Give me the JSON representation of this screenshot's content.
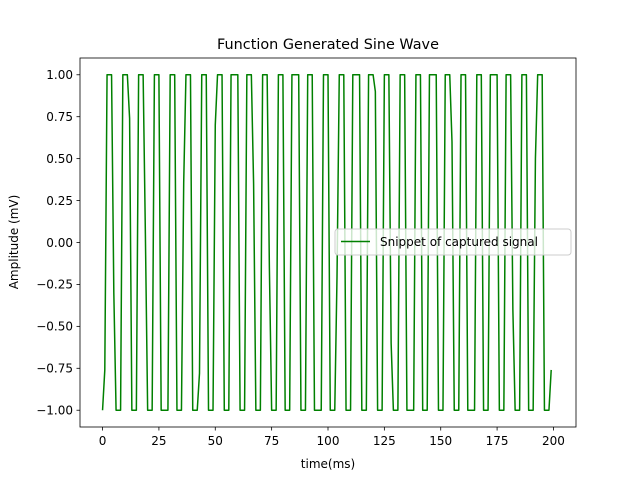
{
  "chart_data": {
    "type": "line",
    "title": "Function Generated Sine Wave",
    "xlabel": "time(ms)",
    "ylabel": "Amplitude (mV)",
    "xlim": [
      -10,
      210
    ],
    "ylim": [
      -1.1,
      1.1
    ],
    "xticks": [
      0,
      25,
      50,
      75,
      100,
      125,
      150,
      175,
      200
    ],
    "xtick_labels": [
      "0",
      "25",
      "50",
      "75",
      "100",
      "125",
      "150",
      "175",
      "200"
    ],
    "yticks": [
      1.0,
      0.75,
      0.5,
      0.25,
      0.0,
      -0.25,
      -0.5,
      -0.75,
      -1.0
    ],
    "ytick_labels": [
      "1.00",
      "0.75",
      "0.50",
      "0.25",
      "0.00",
      "−0.25",
      "−0.50",
      "−0.75",
      "−1.00"
    ],
    "grid": false,
    "legend_position": "center-right",
    "series": [
      {
        "name": "Snippet of captured signal",
        "color": "#008000",
        "x": [
          0,
          1,
          2,
          3,
          4,
          5,
          6,
          7,
          8,
          9,
          10,
          11,
          12,
          13,
          14,
          15,
          16,
          17,
          18,
          19,
          20,
          21,
          22,
          23,
          24,
          25,
          26,
          27,
          28,
          29,
          30,
          31,
          32,
          33,
          34,
          35,
          36,
          37,
          38,
          39,
          40,
          41,
          42,
          43,
          44,
          45,
          46,
          47,
          48,
          49,
          50,
          51,
          52,
          53,
          54,
          55,
          56,
          57,
          58,
          59,
          60,
          61,
          62,
          63,
          64,
          65,
          66,
          67,
          68,
          69,
          70,
          71,
          72,
          73,
          74,
          75,
          76,
          77,
          78,
          79,
          80,
          81,
          82,
          83,
          84,
          85,
          86,
          87,
          88,
          89,
          90,
          91,
          92,
          93,
          94,
          95,
          96,
          97,
          98,
          99,
          100,
          101,
          102,
          103,
          104,
          105,
          106,
          107,
          108,
          109,
          110,
          111,
          112,
          113,
          114,
          115,
          116,
          117,
          118,
          119,
          120,
          121,
          122,
          123,
          124,
          125,
          126,
          127,
          128,
          129,
          130,
          131,
          132,
          133,
          134,
          135,
          136,
          137,
          138,
          139,
          140,
          141,
          142,
          143,
          144,
          145,
          146,
          147,
          148,
          149,
          150,
          151,
          152,
          153,
          154,
          155,
          156,
          157,
          158,
          159,
          160,
          161,
          162,
          163,
          164,
          165,
          166,
          167,
          168,
          169,
          170,
          171,
          172,
          173,
          174,
          175,
          176,
          177,
          178,
          179,
          180,
          181,
          182,
          183,
          184,
          185,
          186,
          187,
          188,
          189,
          190,
          191,
          192,
          193,
          194,
          195,
          196,
          197,
          198,
          199
        ],
        "y": [
          -1.0,
          -0.76,
          1.0,
          1.0,
          1.0,
          -0.3,
          -1.0,
          -1.0,
          -1.0,
          1.0,
          1.0,
          1.0,
          0.74,
          -1.0,
          -1.0,
          -1.0,
          1.0,
          1.0,
          1.0,
          0.05,
          -1.0,
          -1.0,
          -1.0,
          1.0,
          1.0,
          1.0,
          -1.0,
          -1.0,
          -1.0,
          -1.0,
          1.0,
          1.0,
          1.0,
          -1.0,
          -1.0,
          -1.0,
          0.36,
          1.0,
          1.0,
          1.0,
          -1.0,
          -1.0,
          -1.0,
          -0.78,
          1.0,
          1.0,
          1.0,
          -1.0,
          -1.0,
          -1.0,
          0.7,
          1.0,
          1.0,
          1.0,
          -1.0,
          -1.0,
          -1.0,
          1.0,
          1.0,
          1.0,
          1.0,
          -1.0,
          -1.0,
          -1.0,
          1.0,
          1.0,
          1.0,
          0.35,
          -1.0,
          -1.0,
          -1.0,
          1.0,
          1.0,
          1.0,
          -0.15,
          -1.0,
          -1.0,
          -1.0,
          1.0,
          1.0,
          1.0,
          -1.0,
          -1.0,
          -1.0,
          1.0,
          1.0,
          1.0,
          1.0,
          -1.0,
          -1.0,
          -1.0,
          1.0,
          1.0,
          1.0,
          -1.0,
          -1.0,
          -1.0,
          -1.0,
          1.0,
          1.0,
          1.0,
          -1.0,
          -1.0,
          -1.0,
          -0.2,
          1.0,
          1.0,
          1.0,
          -1.0,
          -1.0,
          -1.0,
          1.0,
          1.0,
          1.0,
          1.0,
          -1.0,
          -1.0,
          -1.0,
          1.0,
          1.0,
          1.0,
          0.9,
          -1.0,
          -1.0,
          -1.0,
          1.0,
          1.0,
          1.0,
          -0.6,
          -1.0,
          -1.0,
          -1.0,
          1.0,
          1.0,
          1.0,
          -1.0,
          -1.0,
          -1.0,
          -1.0,
          1.0,
          1.0,
          1.0,
          -1.0,
          -1.0,
          -1.0,
          1.0,
          1.0,
          1.0,
          1.0,
          -1.0,
          -1.0,
          -1.0,
          1.0,
          1.0,
          1.0,
          0.6,
          -1.0,
          -1.0,
          -1.0,
          1.0,
          1.0,
          1.0,
          -1.0,
          -1.0,
          -1.0,
          -1.0,
          1.0,
          1.0,
          1.0,
          -1.0,
          -1.0,
          -1.0,
          1.0,
          1.0,
          1.0,
          1.0,
          -1.0,
          -1.0,
          -1.0,
          1.0,
          1.0,
          1.0,
          -0.4,
          -1.0,
          -1.0,
          -1.0,
          1.0,
          1.0,
          1.0,
          -1.0,
          -1.0,
          -1.0,
          0.5,
          1.0,
          1.0,
          1.0,
          -1.0,
          -1.0,
          -1.0,
          -0.76
        ]
      }
    ]
  }
}
